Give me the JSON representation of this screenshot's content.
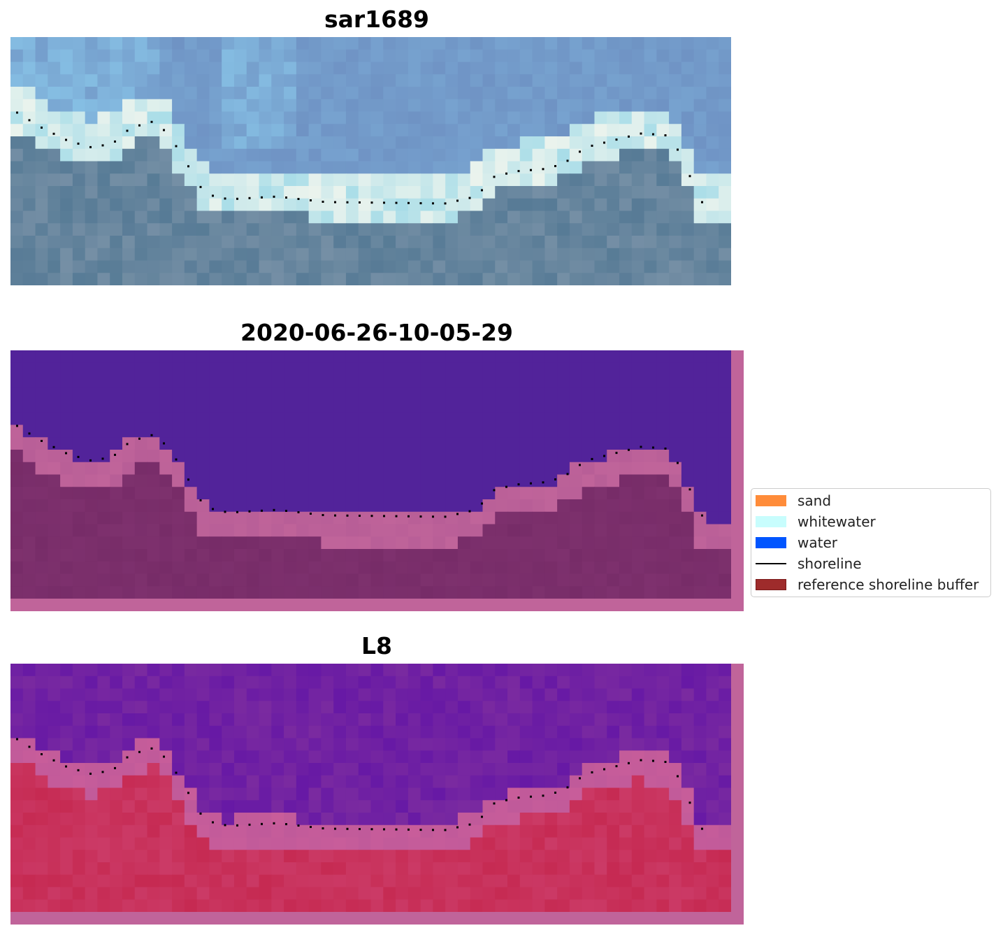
{
  "panels": [
    {
      "title": "sar1689"
    },
    {
      "title": "2020-06-26-10-05-29"
    },
    {
      "title": "L8"
    }
  ],
  "legend": {
    "items": [
      {
        "label": "sand",
        "kind": "patch",
        "color": "#ff8c3a"
      },
      {
        "label": "whitewater",
        "kind": "patch",
        "color": "#c8fdfd"
      },
      {
        "label": "water",
        "kind": "patch",
        "color": "#0055ff"
      },
      {
        "label": "shoreline",
        "kind": "line",
        "color": "#000000"
      },
      {
        "label": "reference shoreline buffer",
        "kind": "patch",
        "color": "#9e2b2b",
        "edge": "#7a1a1a"
      }
    ]
  },
  "colors": {
    "rgb_sky": "#6f93c4",
    "rgb_light": "#8fd0f0",
    "rgb_land": "#577b96",
    "class_water": "#52239a",
    "buffer_pink": "#c0649a",
    "land_dark": "#772c68",
    "mndwi_water": "#7a2aa0",
    "mndwi_land": "#c62a52"
  }
}
